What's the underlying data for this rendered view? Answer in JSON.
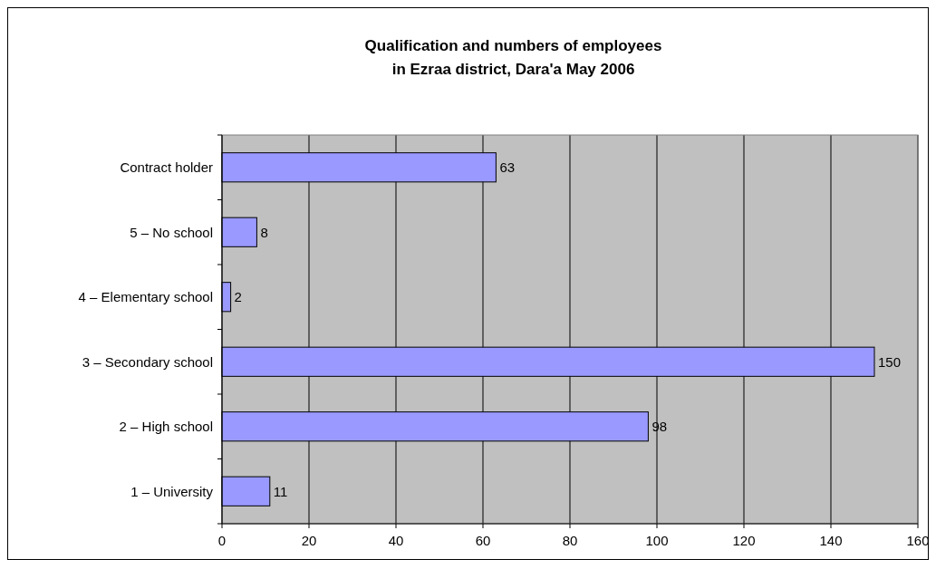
{
  "chart_data": {
    "type": "bar",
    "orientation": "horizontal",
    "title": "Qualification and numbers of employees\nin Ezraa district, Dara'a May 2006",
    "categories": [
      "Contract holder",
      "5 – No school",
      "4 – Elementary school",
      "3 – Secondary school",
      "2 – High school",
      "1 – University"
    ],
    "values": [
      63,
      8,
      2,
      150,
      98,
      11
    ],
    "color": "#9999ff",
    "data_labels": true,
    "xlim": [
      0,
      160
    ],
    "xticks": [
      0,
      20,
      40,
      60,
      80,
      100,
      120,
      140,
      160
    ],
    "grid": "x"
  }
}
